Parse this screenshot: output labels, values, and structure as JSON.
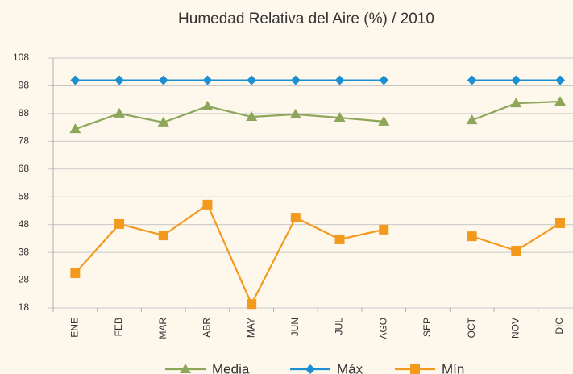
{
  "chart_data": {
    "type": "line",
    "title": "Humedad Relativa del Aire  (%) / 2010",
    "categories": [
      "ENE",
      "FEB",
      "MAR",
      "ABR",
      "MAY",
      "JUN",
      "JUL",
      "AGO",
      "SEP",
      "OCT",
      "NOV",
      "DIC"
    ],
    "series": [
      {
        "name": "Media",
        "color": "#8ea65a",
        "marker": "triangle",
        "values": [
          82.4,
          88,
          84.8,
          90.6,
          86.8,
          87.7,
          86.5,
          85.1,
          null,
          85.6,
          91.7,
          92.3
        ]
      },
      {
        "name": "Máx",
        "color": "#1b8fd2",
        "marker": "diamond",
        "values": [
          100,
          100,
          100,
          100,
          100,
          100,
          100,
          100,
          null,
          100,
          100,
          100
        ]
      },
      {
        "name": "Mín",
        "color": "#f39a1e",
        "marker": "square",
        "values": [
          30.5,
          48.2,
          44.1,
          55.2,
          19.4,
          50.5,
          42.7,
          46.2,
          null,
          43.8,
          38.6,
          48.5
        ]
      }
    ],
    "ylim": [
      18,
      108
    ],
    "yticks": [
      18,
      28,
      38,
      48,
      58,
      68,
      78,
      88,
      98,
      108
    ],
    "grid": true
  }
}
